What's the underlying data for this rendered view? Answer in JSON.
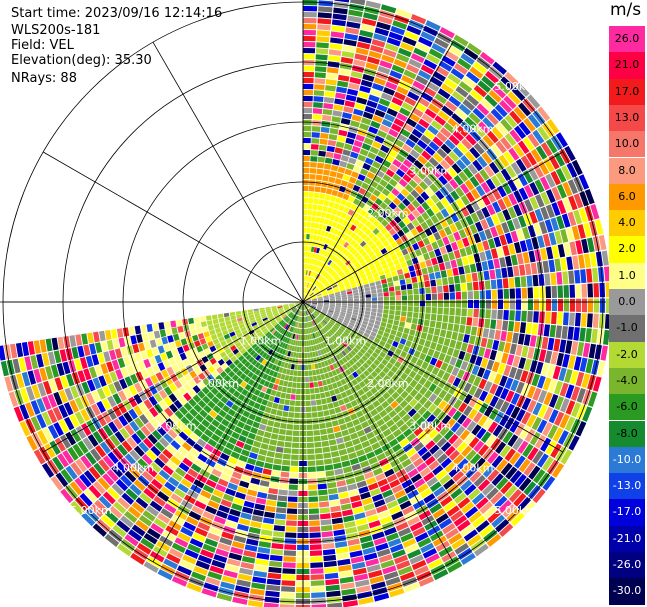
{
  "header": {
    "start_time": "Start time: 2023/09/16 12:14:16",
    "instrument": "WLS200s-181",
    "field": "Field: VEL",
    "elevation": "Elevation(deg): 35.30",
    "nrays": "NRays: 88"
  },
  "colorbar": {
    "unit": "m/s",
    "levels": [
      {
        "label": "26.0",
        "color": "#ff2aa0"
      },
      {
        "label": "21.0",
        "color": "#ff0044"
      },
      {
        "label": "17.0",
        "color": "#f21a1a"
      },
      {
        "label": "13.0",
        "color": "#f54848"
      },
      {
        "label": "10.0",
        "color": "#f7766a"
      },
      {
        "label": "8.0",
        "color": "#fb9a7e"
      },
      {
        "label": "6.0",
        "color": "#ff9900"
      },
      {
        "label": "4.0",
        "color": "#ffcc00"
      },
      {
        "label": "2.0",
        "color": "#ffff00"
      },
      {
        "label": "1.0",
        "color": "#ffff88"
      },
      {
        "label": "0.0",
        "color": "#9a9a9a"
      },
      {
        "label": "-1.0",
        "color": "#707070"
      },
      {
        "label": "-2.0",
        "color": "#b3d935"
      },
      {
        "label": "-4.0",
        "color": "#7ab52e"
      },
      {
        "label": "-6.0",
        "color": "#2a9a22"
      },
      {
        "label": "-8.0",
        "color": "#168a2e"
      },
      {
        "label": "-10.0",
        "color": "#2a7ad6"
      },
      {
        "label": "-13.0",
        "color": "#1040e8"
      },
      {
        "label": "-17.0",
        "color": "#0000dd"
      },
      {
        "label": "-21.0",
        "color": "#0000aa"
      },
      {
        "label": "-26.0",
        "color": "#000080"
      },
      {
        "label": "-30.0",
        "color": "#000050"
      }
    ]
  },
  "chart_data": {
    "type": "heatmap",
    "projection": "polar PPI",
    "field": "VEL",
    "unit": "m/s",
    "nrays": 88,
    "range_rings_km": [
      1.0,
      2.0,
      3.0,
      4.0,
      5.0
    ],
    "ring_labels": [
      "1.00km",
      "2.00km",
      "3.00km",
      "4.00km",
      "5.00km"
    ],
    "spoke_step_deg": 30,
    "scan_sector_deg": [
      0,
      262
    ],
    "max_range_km": 5.1,
    "near_field_pattern": [
      {
        "azimuth_from_deg": 0,
        "azimuth_to_deg": 75,
        "range_to_km": 1.8,
        "value": 2.0
      },
      {
        "azimuth_from_deg": 0,
        "azimuth_to_deg": 25,
        "range_to_km": 2.3,
        "value": 6.0
      },
      {
        "azimuth_from_deg": 75,
        "azimuth_to_deg": 120,
        "range_to_km": 1.3,
        "value": 0.0
      },
      {
        "azimuth_from_deg": 90,
        "azimuth_to_deg": 200,
        "range_to_km": 2.7,
        "value": -4.0
      },
      {
        "azimuth_from_deg": 130,
        "azimuth_to_deg": 230,
        "range_to_km": 2.8,
        "value": -6.0
      },
      {
        "azimuth_from_deg": 200,
        "azimuth_to_deg": 262,
        "range_to_km": 1.6,
        "value": -2.0
      },
      {
        "azimuth_from_deg": 235,
        "azimuth_to_deg": 262,
        "range_to_km": 1.0,
        "value": 0.0
      }
    ],
    "far_field": "noise"
  }
}
